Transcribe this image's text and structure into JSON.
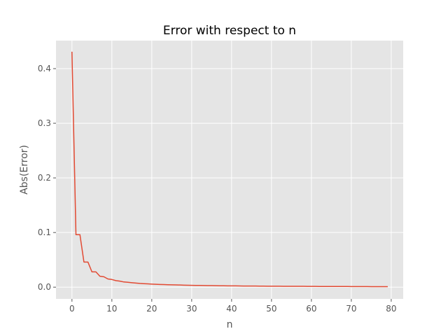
{
  "chart_data": {
    "type": "line",
    "title": "Error with respect to n",
    "xlabel": "n",
    "ylabel": "Abs(Error)",
    "xlim": [
      -4,
      83
    ],
    "ylim": [
      -0.0215,
      0.4513
    ],
    "xticks": [
      0,
      10,
      20,
      30,
      40,
      50,
      60,
      70,
      80
    ],
    "yticks": [
      0.0,
      0.1,
      0.2,
      0.3,
      0.4
    ],
    "xtick_labels": [
      "0",
      "10",
      "20",
      "30",
      "40",
      "50",
      "60",
      "70",
      "80"
    ],
    "ytick_labels": [
      "0.0",
      "0.1",
      "0.2",
      "0.3",
      "0.4"
    ],
    "grid": true,
    "style": "ggplot",
    "colors": {
      "line": "#E24A33",
      "background": "#E5E5E5",
      "grid": "#FFFFFF",
      "tick": "#555555"
    },
    "series": [
      {
        "x": [
          0,
          1,
          2,
          3,
          4,
          5,
          6,
          7,
          8,
          9,
          10,
          11,
          12,
          13,
          14,
          15,
          16,
          17,
          18,
          19,
          20,
          21,
          22,
          23,
          24,
          25,
          26,
          27,
          28,
          29,
          30,
          31,
          32,
          33,
          34,
          35,
          36,
          37,
          38,
          39,
          40,
          41,
          42,
          43,
          44,
          45,
          46,
          47,
          48,
          49,
          50,
          51,
          52,
          53,
          54,
          55,
          56,
          57,
          58,
          59,
          60,
          61,
          62,
          63,
          64,
          65,
          66,
          67,
          68,
          69,
          70,
          71,
          72,
          73,
          74,
          75,
          76,
          77,
          78,
          79
        ],
        "y": [
          0.43,
          0.096,
          0.096,
          0.046,
          0.046,
          0.028,
          0.028,
          0.02,
          0.019,
          0.015,
          0.014,
          0.012,
          0.011,
          0.0095,
          0.009,
          0.0082,
          0.0075,
          0.0068,
          0.0064,
          0.006,
          0.0056,
          0.0053,
          0.005,
          0.0047,
          0.0045,
          0.0043,
          0.0041,
          0.0039,
          0.0037,
          0.0035,
          0.0034,
          0.0032,
          0.0031,
          0.003,
          0.0029,
          0.0028,
          0.0027,
          0.0026,
          0.0025,
          0.0024,
          0.0023,
          0.0023,
          0.0022,
          0.0021,
          0.0021,
          0.002,
          0.002,
          0.0019,
          0.0019,
          0.0018,
          0.0018,
          0.0017,
          0.0017,
          0.0016,
          0.0016,
          0.0016,
          0.0015,
          0.0015,
          0.0015,
          0.0014,
          0.0014,
          0.0014,
          0.0013,
          0.0013,
          0.0013,
          0.0013,
          0.0012,
          0.0012,
          0.0012,
          0.0012,
          0.0011,
          0.0011,
          0.0011,
          0.0011,
          0.0011,
          0.001,
          0.001,
          0.001,
          0.001,
          0.001
        ]
      }
    ]
  }
}
